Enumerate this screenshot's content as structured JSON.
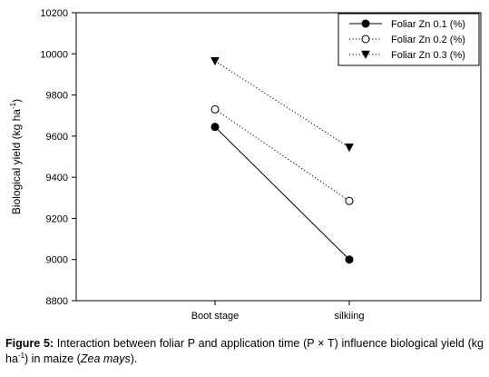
{
  "chart_data": {
    "type": "line",
    "categories": [
      "Boot stage",
      "silkiing"
    ],
    "series": [
      {
        "name": "Foliar Zn 0.1 (%)",
        "values": [
          9645,
          9000
        ],
        "marker": "filled-circle",
        "line": "solid"
      },
      {
        "name": "Foliar Zn 0.2 (%)",
        "values": [
          9730,
          9285
        ],
        "marker": "open-circle",
        "line": "dotted"
      },
      {
        "name": "Foliar Zn 0.3 (%)",
        "values": [
          9965,
          9545
        ],
        "marker": "filled-triangle-down",
        "line": "dotted"
      }
    ],
    "ylabel_main": "Biological yield (kg ha",
    "ylabel_sup": "-1",
    "ylabel_end": ")",
    "ylim": [
      8800,
      10200
    ],
    "yticks": [
      8800,
      9000,
      9200,
      9400,
      9600,
      9800,
      10000,
      10200
    ],
    "grid": false,
    "legend_position": "top-right"
  },
  "caption": {
    "label": "Figure 5:",
    "text1": " Interaction between foliar P and application time (P × T) influence biological yield (kg ha",
    "sup": "-1",
    "text2": ") in maize (",
    "italic": "Zea mays",
    "text3": ")."
  }
}
